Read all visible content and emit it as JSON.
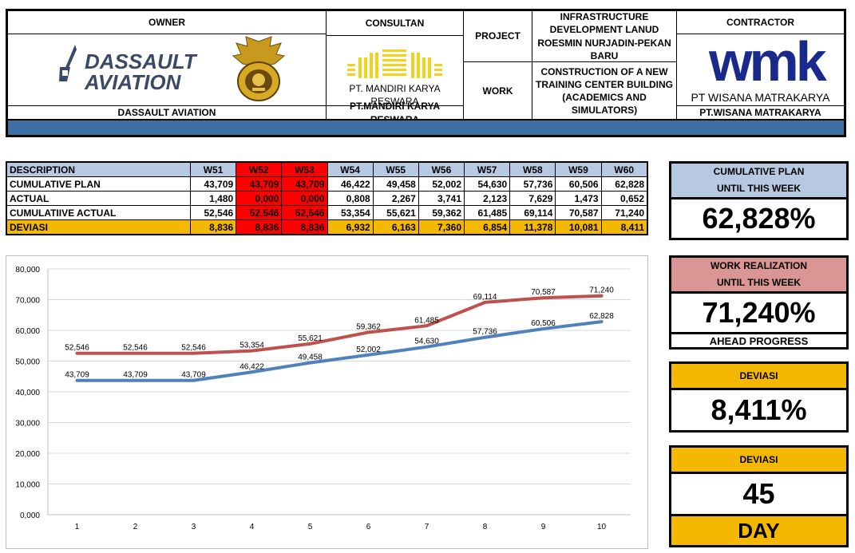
{
  "header": {
    "owner_title": "OWNER",
    "owner_logo_line1": "DASSAULT",
    "owner_logo_line2": "AVIATION",
    "owner_name": "DASSAULT AVIATION",
    "consultant_title": "CONSULTAN",
    "consultant_logo_text": "PT. MANDIRI KARYA RESWARA",
    "consultant_name": "PT.MANDIRI KARYA RESWARA",
    "project_label": "PROJECT",
    "project_value": "INFRASTRUCTURE DEVELOPMENT LANUD ROESMIN NURJADIN-PEKAN BARU",
    "work_label": "WORK",
    "work_value": "CONSTRUCTION OF A NEW TRAINING CENTER BUILDING (ACADEMICS AND SIMULATORS)",
    "contractor_title": "CONTRACTOR",
    "contractor_logo_text": "wmk",
    "contractor_logo_sub": "PT WISANA MATRAKARYA",
    "contractor_name": "PT.WISANA MATRAKARYA",
    "band_color": "#3d6fa5"
  },
  "table": {
    "columns": [
      "DESCRIPTION",
      "W51",
      "W52",
      "W53",
      "W54",
      "W55",
      "W56",
      "W57",
      "W58",
      "W59",
      "W60"
    ],
    "rows": [
      {
        "label": "CUMULATIVE PLAN",
        "values": [
          "43,709",
          "43,709",
          "43,709",
          "46,422",
          "49,458",
          "52,002",
          "54,630",
          "57,736",
          "60,506",
          "62,828"
        ]
      },
      {
        "label": "ACTUAL",
        "values": [
          "1,480",
          "0,000",
          "0,000",
          "0,808",
          "2,267",
          "3,741",
          "2,123",
          "7,629",
          "1,473",
          "0,652"
        ]
      },
      {
        "label": "CUMULATIIVE ACTUAL",
        "values": [
          "52,546",
          "52,546",
          "52,546",
          "53,354",
          "55,621",
          "59,362",
          "61,485",
          "69,114",
          "70,587",
          "71,240"
        ]
      },
      {
        "label": "DEVIASI",
        "values": [
          "8,836",
          "8,836",
          "8,836",
          "6,932",
          "6,163",
          "7,360",
          "6,854",
          "11,378",
          "10,081",
          "8,411"
        ]
      }
    ],
    "highlight_columns": [
      "W52",
      "W53"
    ],
    "colors": {
      "header": "#b7c9e1",
      "deviasi": "#f5b800",
      "highlight": "#ff0000"
    }
  },
  "chart_data": {
    "type": "line",
    "x": [
      1,
      2,
      3,
      4,
      5,
      6,
      7,
      8,
      9,
      10
    ],
    "ylim": [
      0,
      80000
    ],
    "y_ticks": [
      "0,000",
      "10,000",
      "20,000",
      "30,000",
      "40,000",
      "50,000",
      "60,000",
      "70,000",
      "80,000"
    ],
    "series": [
      {
        "color": "#c0504d",
        "values": [
          52546,
          52546,
          52546,
          53354,
          55621,
          59362,
          61485,
          69114,
          70587,
          71240
        ],
        "labels": [
          "52,546",
          "52,546",
          "52,546",
          "53,354",
          "55,621",
          "59,362",
          "61,485",
          "69,114",
          "70,587",
          "71,240"
        ]
      },
      {
        "color": "#4f81bd",
        "values": [
          43709,
          43709,
          43709,
          46422,
          49458,
          52002,
          54630,
          57736,
          60506,
          62828
        ],
        "labels": [
          "43,709",
          "43,709",
          "43,709",
          "46,422",
          "49,458",
          "52,002",
          "54,630",
          "57,736",
          "60,506",
          "62,828"
        ]
      }
    ],
    "grid": true,
    "legend": "none"
  },
  "panels": {
    "plan_label_1": "CUMULATIVE PLAN",
    "plan_label_2": "UNTIL THIS WEEK",
    "plan_value": "62,828%",
    "work_label_1": "WORK REALIZATION",
    "work_label_2": "UNTIL THIS WEEK",
    "work_value": "71,240%",
    "work_status": "AHEAD PROGRESS",
    "dev_label": "DEVIASI",
    "dev_value": "8,411%",
    "dev2_label": "DEVIASI",
    "dev2_value": "45",
    "dev2_unit": "DAY",
    "colors": {
      "plan": "#b7c9e1",
      "work": "#da9694",
      "deviasi": "#f5b800"
    }
  }
}
